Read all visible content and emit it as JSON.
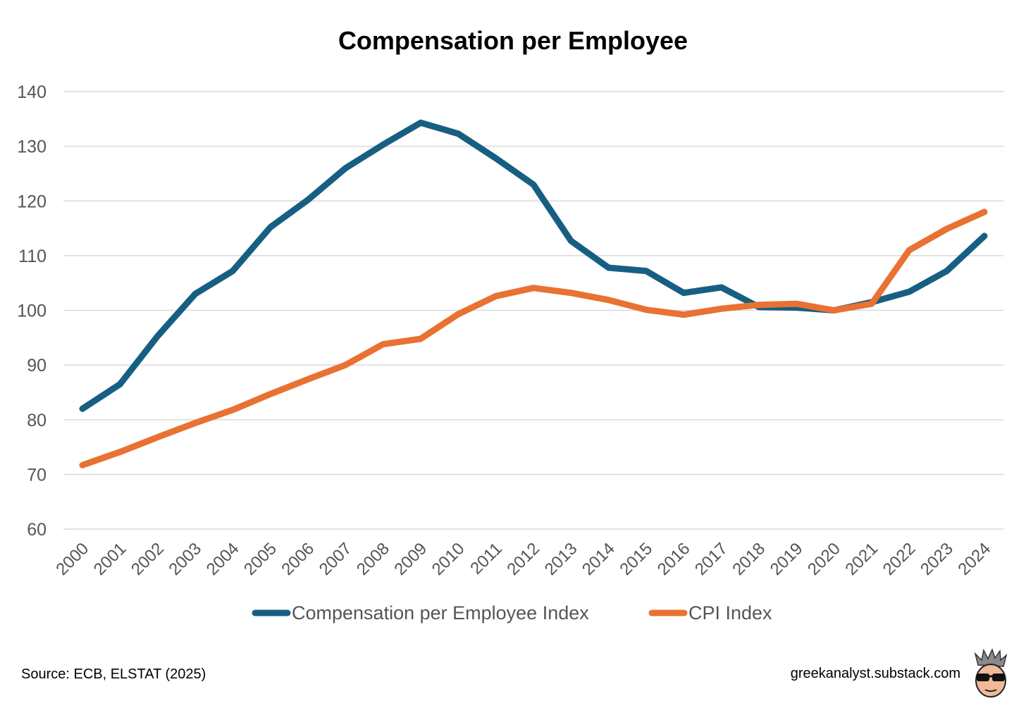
{
  "chart_data": {
    "type": "line",
    "title": "Compensation per Employee",
    "xlabel": "",
    "ylabel": "",
    "ylim": [
      60,
      140
    ],
    "yticks": [
      60,
      70,
      80,
      90,
      100,
      110,
      120,
      130,
      140
    ],
    "grid": true,
    "legend_position": "bottom",
    "x": [
      "2000",
      "2001",
      "2002",
      "2003",
      "2004",
      "2005",
      "2006",
      "2007",
      "2008",
      "2009",
      "2010",
      "2011",
      "2012",
      "2013",
      "2014",
      "2015",
      "2016",
      "2017",
      "2018",
      "2019",
      "2020",
      "2021",
      "2022",
      "2023",
      "2024"
    ],
    "series": [
      {
        "name": "Compensation per Employee Index",
        "color": "#175f82",
        "values": [
          82,
          86.5,
          95.3,
          103,
          107.2,
          115.2,
          120.2,
          126,
          130.3,
          134.3,
          132.3,
          127.8,
          123,
          112.7,
          107.8,
          107.2,
          103.2,
          104.2,
          100.6,
          100.5,
          100,
          101.5,
          103.4,
          107.2,
          113.6
        ]
      },
      {
        "name": "CPI Index",
        "color": "#e97132",
        "values": [
          71.7,
          74.1,
          76.8,
          79.4,
          81.8,
          84.7,
          87.4,
          90,
          93.8,
          94.8,
          99.3,
          102.6,
          104.1,
          103.2,
          101.9,
          100.1,
          99.2,
          100.3,
          101,
          101.2,
          100,
          101.2,
          111,
          114.9,
          118
        ]
      }
    ]
  },
  "footer": {
    "source": "Source: ECB, ELSTAT (2025)",
    "site": "greekanalyst.substack.com"
  },
  "logo": {
    "icon": "cartoon-head-sunglasses-icon"
  }
}
